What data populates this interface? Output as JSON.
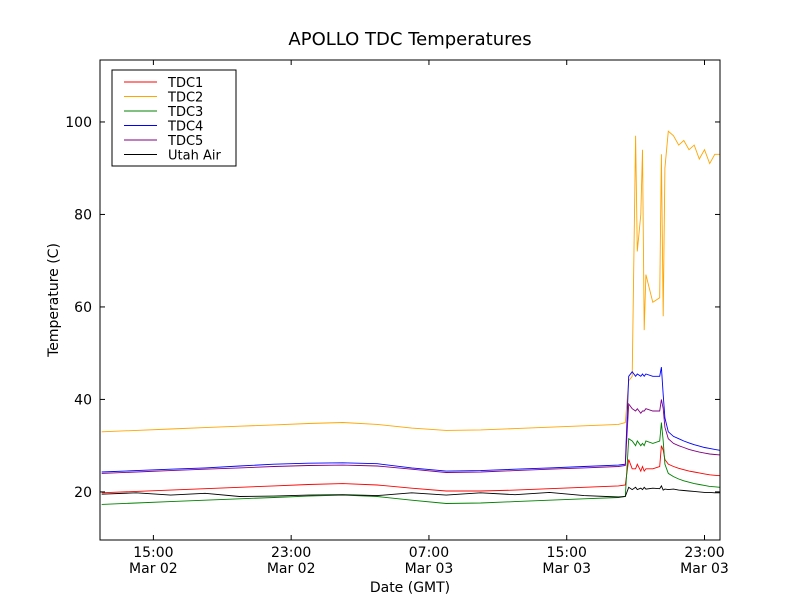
{
  "chart_data": {
    "type": "line",
    "title": "APOLLO TDC Temperatures",
    "xlabel": "Date (GMT)",
    "ylabel": "Temperature (C)",
    "x_unit": "hours since Mar 02 00:00 GMT",
    "xlim": [
      11.9,
      47.9
    ],
    "ylim": [
      9.6,
      113.4
    ],
    "grid": false,
    "legend_position": "top-left",
    "yticks": [
      20,
      40,
      60,
      80,
      100
    ],
    "xticks": [
      {
        "value": 15,
        "time": "15:00",
        "date": "Mar 02"
      },
      {
        "value": 23,
        "time": "23:00",
        "date": "Mar 02"
      },
      {
        "value": 31,
        "time": "07:00",
        "date": "Mar 03"
      },
      {
        "value": 39,
        "time": "15:00",
        "date": "Mar 03"
      },
      {
        "value": 47,
        "time": "23:00",
        "date": "Mar 03"
      }
    ],
    "x": [
      12,
      14,
      16,
      18,
      20,
      22,
      24,
      26,
      28,
      30,
      32,
      34,
      36,
      38,
      40,
      42,
      42.4,
      42.6,
      42.8,
      43.0,
      43.1,
      43.3,
      43.4,
      43.5,
      43.6,
      44.0,
      44.4,
      44.5,
      44.6,
      44.7,
      44.9,
      45.2,
      45.5,
      45.8,
      46.1,
      46.4,
      46.7,
      47.0,
      47.3,
      47.6,
      47.9
    ],
    "series": [
      {
        "name": "TDC1",
        "color": "#ff0000",
        "values": [
          19.8,
          20.1,
          20.4,
          20.7,
          21.0,
          21.3,
          21.6,
          21.8,
          21.5,
          20.8,
          20.2,
          20.2,
          20.4,
          20.7,
          21.0,
          21.3,
          21.5,
          27,
          25,
          25,
          26,
          24.5,
          25.5,
          24.5,
          25,
          25,
          25.5,
          30,
          29,
          27,
          26,
          25.5,
          25.1,
          24.8,
          24.5,
          24.3,
          24.1,
          23.9,
          23.7,
          23.6,
          23.5
        ]
      },
      {
        "name": "TDC2",
        "color": "#ffa500",
        "values": [
          33,
          33.3,
          33.6,
          33.9,
          34.2,
          34.5,
          34.8,
          35,
          34.6,
          33.8,
          33.3,
          33.4,
          33.7,
          34,
          34.3,
          34.6,
          35,
          44,
          45,
          97,
          72,
          80,
          94,
          55,
          67,
          61,
          62,
          93,
          58,
          90,
          98,
          97,
          95,
          96,
          94,
          95,
          92,
          94,
          91,
          93,
          93
        ]
      },
      {
        "name": "TDC3",
        "color": "#008000",
        "values": [
          17.3,
          17.6,
          17.9,
          18.2,
          18.5,
          18.8,
          19.1,
          19.3,
          19.0,
          18.2,
          17.5,
          17.6,
          17.9,
          18.2,
          18.5,
          18.8,
          19,
          31.5,
          31,
          30,
          31,
          30,
          30.5,
          30,
          31,
          30.5,
          31,
          35,
          31,
          26,
          24,
          23.3,
          22.8,
          22.4,
          22.1,
          21.8,
          21.6,
          21.4,
          21.2,
          21.1,
          21
        ]
      },
      {
        "name": "TDC4",
        "color": "#0000ff",
        "values": [
          24.3,
          24.6,
          24.9,
          25.2,
          25.6,
          26.0,
          26.2,
          26.3,
          26.1,
          25.2,
          24.5,
          24.6,
          24.9,
          25.2,
          25.5,
          25.8,
          26,
          45,
          46,
          45,
          45.5,
          45,
          45.5,
          45,
          45.5,
          45,
          45,
          47,
          41,
          36,
          33,
          32,
          31.5,
          31,
          30.6,
          30.2,
          29.9,
          29.6,
          29.4,
          29.2,
          29
        ]
      },
      {
        "name": "TDC5",
        "color": "#800080",
        "values": [
          24,
          24.3,
          24.6,
          24.9,
          25.2,
          25.5,
          25.7,
          25.8,
          25.6,
          24.9,
          24.2,
          24.3,
          24.6,
          24.9,
          25.2,
          25.5,
          25.7,
          39,
          38,
          37.5,
          38,
          37,
          37.5,
          37.5,
          38,
          37.5,
          37.5,
          40,
          38,
          34,
          31.5,
          30.5,
          30,
          29.6,
          29.2,
          28.9,
          28.6,
          28.4,
          28.2,
          28.1,
          28
        ]
      },
      {
        "name": "Utah Air",
        "color": "#000000",
        "values": [
          19.5,
          19.8,
          19.3,
          19.7,
          19,
          19.1,
          19.3,
          19.4,
          19.2,
          19.8,
          19.3,
          19.8,
          19.4,
          19.9,
          19.2,
          18.9,
          19,
          21,
          20.5,
          21,
          20.5,
          20.8,
          20.5,
          21,
          20.6,
          20.8,
          20.7,
          21.3,
          20.4,
          20.6,
          20.5,
          20.6,
          20.4,
          20.3,
          20.2,
          20.1,
          20.0,
          19.9,
          19.9,
          19.8,
          19.8
        ]
      }
    ]
  }
}
